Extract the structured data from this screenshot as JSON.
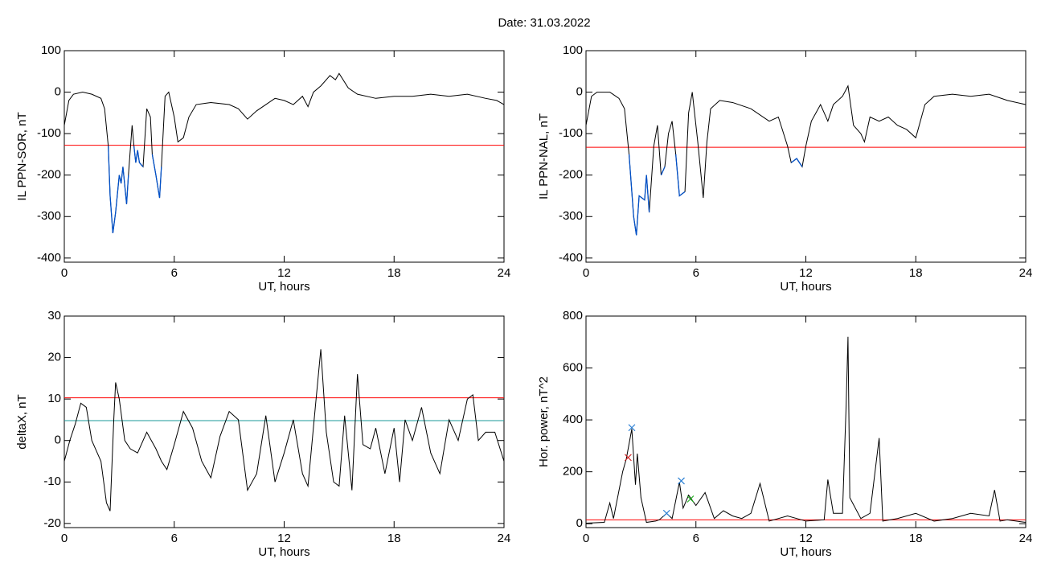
{
  "title": "Date:  31.03.2022",
  "chart_data": [
    {
      "type": "line",
      "ylabel": "IL PPN-SOR, nT",
      "xlabel": "UT, hours",
      "xlim": [
        0,
        24
      ],
      "xticks": [
        0,
        6,
        12,
        18,
        24
      ],
      "ylim": [
        -410,
        100
      ],
      "yticks": [
        -400,
        -300,
        -200,
        -100,
        0,
        100
      ],
      "hlines": [
        {
          "value": -128,
          "color": "#ff0000"
        }
      ],
      "below_color": "#0050c8",
      "x": [
        0,
        0.25,
        0.5,
        1,
        1.5,
        2,
        2.2,
        2.4,
        2.5,
        2.65,
        2.8,
        3.0,
        3.1,
        3.2,
        3.4,
        3.5,
        3.7,
        3.8,
        3.9,
        4.0,
        4.1,
        4.3,
        4.5,
        4.7,
        4.8,
        5.0,
        5.2,
        5.3,
        5.5,
        5.7,
        6.0,
        6.2,
        6.5,
        6.8,
        7.2,
        8,
        9,
        9.5,
        10,
        10.5,
        11,
        11.5,
        12,
        12.5,
        13,
        13.3,
        13.6,
        14,
        14.5,
        14.8,
        15,
        15.5,
        16,
        17,
        18,
        19,
        20,
        21,
        22,
        23,
        23.6,
        24
      ],
      "series": [
        {
          "color": "#000000",
          "values": [
            -80,
            -20,
            -5,
            0,
            -5,
            -15,
            -40,
            -130,
            -250,
            -340,
            -290,
            -200,
            -220,
            -180,
            -270,
            -200,
            -80,
            -130,
            -170,
            -140,
            -170,
            -180,
            -40,
            -60,
            -150,
            -200,
            -255,
            -180,
            -10,
            0,
            -60,
            -120,
            -110,
            -60,
            -30,
            -25,
            -30,
            -40,
            -65,
            -45,
            -30,
            -15,
            -20,
            -30,
            -10,
            -35,
            0,
            15,
            40,
            30,
            45,
            10,
            -5,
            -15,
            -10,
            -10,
            -5,
            -10,
            -5,
            -15,
            -20,
            -30
          ]
        }
      ]
    },
    {
      "type": "line",
      "ylabel": "IL PPN-NAL, nT",
      "xlabel": "UT, hours",
      "xlim": [
        0,
        24
      ],
      "xticks": [
        0,
        6,
        12,
        18,
        24
      ],
      "ylim": [
        -410,
        100
      ],
      "yticks": [
        -400,
        -300,
        -200,
        -100,
        0,
        100
      ],
      "hlines": [
        {
          "value": -133,
          "color": "#ff0000"
        }
      ],
      "below_color": "#0050c8",
      "x": [
        0,
        0.3,
        0.6,
        1.3,
        1.8,
        2.1,
        2.35,
        2.6,
        2.75,
        2.9,
        3.2,
        3.3,
        3.45,
        3.7,
        3.9,
        4.1,
        4.3,
        4.5,
        4.7,
        4.9,
        5.1,
        5.4,
        5.6,
        5.8,
        6.1,
        6.4,
        6.6,
        6.8,
        7.3,
        8,
        9,
        10,
        10.5,
        11,
        11.2,
        11.5,
        11.8,
        12,
        12.3,
        12.8,
        13.2,
        13.5,
        14,
        14.3,
        14.6,
        15,
        15.2,
        15.5,
        16,
        16.5,
        17,
        17.5,
        18,
        18.5,
        19,
        20,
        21,
        22,
        23,
        24
      ],
      "series": [
        {
          "color": "#000000",
          "values": [
            -80,
            -10,
            0,
            0,
            -15,
            -40,
            -150,
            -300,
            -345,
            -250,
            -260,
            -200,
            -290,
            -130,
            -80,
            -200,
            -180,
            -100,
            -70,
            -150,
            -250,
            -240,
            -50,
            0,
            -120,
            -255,
            -120,
            -40,
            -20,
            -25,
            -40,
            -70,
            -60,
            -130,
            -170,
            -160,
            -180,
            -130,
            -70,
            -30,
            -70,
            -30,
            -10,
            15,
            -80,
            -100,
            -120,
            -60,
            -70,
            -60,
            -80,
            -90,
            -110,
            -30,
            -10,
            -5,
            -10,
            -5,
            -20,
            -30
          ]
        }
      ]
    },
    {
      "type": "line",
      "ylabel": "deltaX, nT",
      "xlabel": "UT, hours",
      "xlim": [
        0,
        24
      ],
      "xticks": [
        0,
        6,
        12,
        18,
        24
      ],
      "ylim": [
        -21,
        30
      ],
      "yticks": [
        -20,
        -10,
        0,
        10,
        20,
        30
      ],
      "hlines": [
        {
          "value": 10.3,
          "color": "#ff0000"
        },
        {
          "value": 4.8,
          "color": "#1a9a9a"
        }
      ],
      "x": [
        0,
        0.3,
        0.6,
        0.9,
        1.2,
        1.5,
        1.8,
        2.0,
        2.3,
        2.5,
        2.7,
        2.8,
        3.0,
        3.3,
        3.6,
        4,
        4.5,
        5,
        5.3,
        5.6,
        6,
        6.5,
        7,
        7.5,
        8,
        8.5,
        9,
        9.5,
        10,
        10.5,
        11,
        11.5,
        12,
        12.5,
        13,
        13.3,
        13.7,
        14,
        14.3,
        14.7,
        15,
        15.3,
        15.7,
        16,
        16.3,
        16.7,
        17,
        17.5,
        18,
        18.3,
        18.6,
        19,
        19.5,
        20,
        20.5,
        21,
        21.5,
        22,
        22.3,
        22.6,
        23,
        23.5,
        24
      ],
      "series": [
        {
          "color": "#000000",
          "values": [
            -5,
            0,
            4,
            9,
            8,
            0,
            -3,
            -5,
            -15,
            -17,
            5,
            14,
            10,
            0,
            -2,
            -3,
            2,
            -2,
            -5,
            -7,
            -1,
            7,
            3,
            -5,
            -9,
            1,
            7,
            5,
            -12,
            -8,
            6,
            -10,
            -3,
            5,
            -8,
            -11,
            8,
            22,
            2,
            -10,
            -11,
            6,
            -12,
            16,
            -1,
            -2,
            3,
            -8,
            3,
            -10,
            5,
            0,
            8,
            -3,
            -8,
            5,
            0,
            10,
            11,
            0,
            2,
            2,
            -5
          ]
        }
      ]
    },
    {
      "type": "line",
      "ylabel": "Hor. power, nT^2",
      "xlabel": "UT, hours",
      "xlim": [
        0,
        24
      ],
      "xticks": [
        0,
        6,
        12,
        18,
        24
      ],
      "ylim": [
        -15,
        800
      ],
      "yticks": [
        0,
        200,
        400,
        600,
        800
      ],
      "hlines": [
        {
          "value": 15,
          "color": "#ff0000"
        }
      ],
      "x": [
        0,
        1,
        1.3,
        1.5,
        2,
        2.2,
        2.5,
        2.7,
        2.8,
        3.0,
        3.3,
        3.8,
        4,
        4.4,
        4.7,
        5.1,
        5.3,
        5.6,
        6,
        6.5,
        7,
        7.5,
        8,
        8.5,
        9,
        9.5,
        10,
        11,
        11.5,
        12,
        13,
        13.2,
        13.5,
        14,
        14.2,
        14.3,
        14.4,
        15,
        15.5,
        16,
        16.2,
        17,
        18,
        19,
        20,
        21,
        22,
        22.3,
        22.6,
        23,
        24
      ],
      "series": [
        {
          "color": "#000000",
          "values": [
            2,
            5,
            80,
            20,
            200,
            250,
            365,
            150,
            270,
            100,
            5,
            10,
            15,
            40,
            20,
            160,
            60,
            110,
            70,
            120,
            20,
            50,
            30,
            20,
            40,
            155,
            10,
            30,
            20,
            10,
            15,
            170,
            40,
            40,
            460,
            720,
            100,
            20,
            40,
            330,
            10,
            20,
            40,
            10,
            20,
            40,
            30,
            130,
            10,
            15,
            5
          ]
        }
      ],
      "markers": [
        {
          "x": 2.5,
          "y": 370,
          "color": "#2a7fd4"
        },
        {
          "x": 4.4,
          "y": 40,
          "color": "#2a7fd4"
        },
        {
          "x": 5.2,
          "y": 165,
          "color": "#2a7fd4"
        },
        {
          "x": 2.3,
          "y": 255,
          "color": "#d02020"
        },
        {
          "x": 5.7,
          "y": 95,
          "color": "#20b020"
        }
      ]
    }
  ]
}
